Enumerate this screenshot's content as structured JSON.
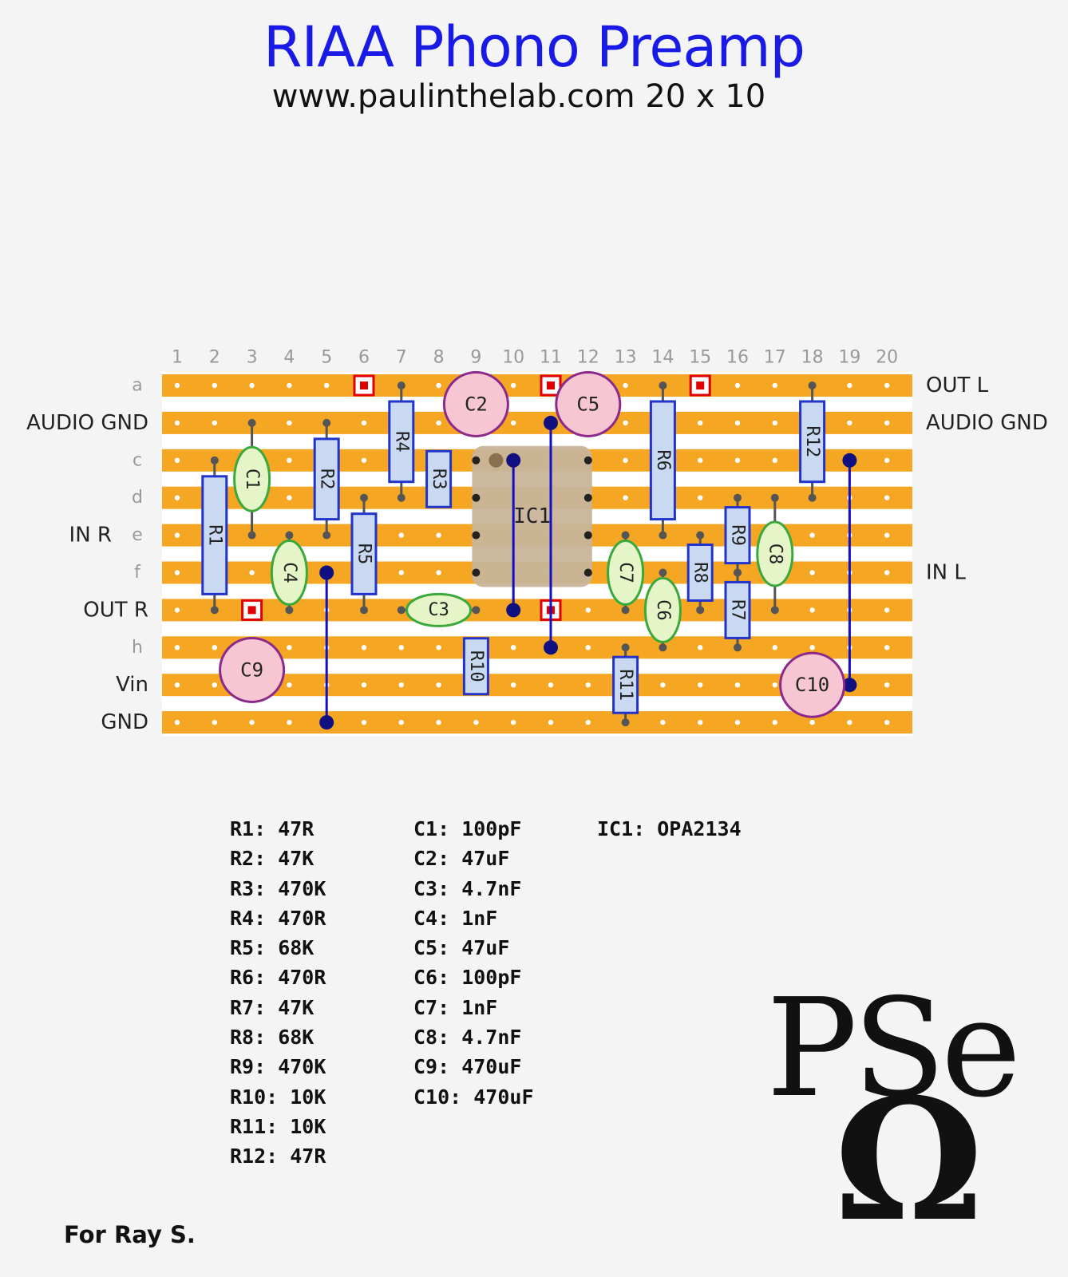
{
  "title": "RIAA Phono Preamp",
  "subtitle": "www.paulinthelab.com 20 x 10",
  "board": {
    "columns": [
      "1",
      "2",
      "3",
      "4",
      "5",
      "6",
      "7",
      "8",
      "9",
      "10",
      "11",
      "12",
      "13",
      "14",
      "15",
      "16",
      "17",
      "18",
      "19",
      "20"
    ],
    "rows": [
      "a",
      "AUDIO GND",
      "c",
      "d",
      "e",
      "f",
      "OUT R",
      "h",
      "Vin",
      "GND"
    ],
    "row_labels_left": [
      {
        "row": 0,
        "text": "a"
      },
      {
        "row": 1,
        "text": "AUDIO GND"
      },
      {
        "row": 2,
        "text": "c"
      },
      {
        "row": 3,
        "text": "d"
      },
      {
        "row": 4,
        "text": "IN R"
      },
      {
        "row": 4,
        "text": "e"
      },
      {
        "row": 5,
        "text": "f"
      },
      {
        "row": 6,
        "text": "OUT R"
      },
      {
        "row": 7,
        "text": "h"
      },
      {
        "row": 8,
        "text": "Vin"
      },
      {
        "row": 9,
        "text": "GND"
      }
    ],
    "row_labels_right": [
      {
        "row": 0,
        "text": "OUT L"
      },
      {
        "row": 1,
        "text": "AUDIO GND"
      },
      {
        "row": 5,
        "text": "IN L"
      }
    ],
    "strip_color": "#f5a623",
    "resistor_color": "#c9d9f2",
    "resistor_border": "#2233cc",
    "film_cap_color": "#e5f5c8",
    "film_cap_border": "#3aa83a",
    "electrolytic_color": "#f6c6d2",
    "electrolytic_border": "#8b2a8b",
    "wire_color": "#1010c8",
    "cut_color": "#e00000",
    "ic_color": "#c8b49a",
    "cuts": [
      [
        6,
        0
      ],
      [
        11,
        0
      ],
      [
        15,
        0
      ],
      [
        3,
        6
      ],
      [
        11,
        6
      ]
    ],
    "resistors": [
      {
        "label": "R1",
        "col": 2,
        "from": 2,
        "to": 6
      },
      {
        "label": "R2",
        "col": 5,
        "from": 1,
        "to": 4
      },
      {
        "label": "R3",
        "col": 8,
        "from": 2,
        "to": 3
      },
      {
        "label": "R4",
        "col": 7,
        "from": 0,
        "to": 3
      },
      {
        "label": "R5",
        "col": 6,
        "from": 3,
        "to": 6
      },
      {
        "label": "R6",
        "col": 14,
        "from": 0,
        "to": 4
      },
      {
        "label": "R7",
        "col": 16,
        "from": 5,
        "to": 7
      },
      {
        "label": "R8",
        "col": 15,
        "from": 4,
        "to": 6
      },
      {
        "label": "R9",
        "col": 16,
        "from": 3,
        "to": 5
      },
      {
        "label": "R10",
        "col": 9,
        "from": 7,
        "to": 8
      },
      {
        "label": "R11",
        "col": 13,
        "from": 7,
        "to": 9
      },
      {
        "label": "R12",
        "col": 18,
        "from": 0,
        "to": 3
      }
    ],
    "film_caps": [
      {
        "label": "C1",
        "col": 3,
        "from": 1,
        "to": 4,
        "orient": "v"
      },
      {
        "label": "C4",
        "col": 4,
        "from": 4,
        "to": 6,
        "orient": "v"
      },
      {
        "label": "C3",
        "row": 6,
        "from": 7,
        "to": 9,
        "orient": "h"
      },
      {
        "label": "C7",
        "col": 13,
        "from": 4,
        "to": 6,
        "orient": "v"
      },
      {
        "label": "C6",
        "col": 14,
        "from": 5,
        "to": 7,
        "orient": "v"
      },
      {
        "label": "C8",
        "col": 17,
        "from": 3,
        "to": 6,
        "orient": "v"
      }
    ],
    "electrolytics": [
      {
        "label": "C2",
        "col": 9,
        "row": 0.5
      },
      {
        "label": "C5",
        "col": 12,
        "row": 0.5
      },
      {
        "label": "C9",
        "col": 3,
        "row": 7.6
      },
      {
        "label": "C10",
        "col": 18,
        "row": 8
      }
    ],
    "wires": [
      {
        "col": 5,
        "from": 5,
        "to": 9
      },
      {
        "col": 11,
        "from": 1,
        "to": 7
      },
      {
        "col": 10,
        "from": 2,
        "to": 6
      },
      {
        "col": 19,
        "from": 2,
        "to": 8
      }
    ],
    "ic": {
      "label": "IC1",
      "col_from": 9,
      "col_to": 12,
      "row_from": 2,
      "row_to": 5
    }
  },
  "parts_col1": [
    "R1: 47R",
    "R2: 47K",
    "R3: 470K",
    "R4: 470R",
    "R5: 68K",
    "R6: 470R",
    "R7: 47K",
    "R8: 68K",
    "R9: 470K",
    "R10: 10K",
    "R11: 10K",
    "R12: 47R"
  ],
  "parts_col2": [
    "C1: 100pF",
    "C2: 47uF",
    "C3: 4.7nF",
    "C4: 1nF",
    "C5: 47uF",
    "C6: 100pF",
    "C7: 1nF",
    "C8: 4.7nF",
    "C9: 470uF",
    "C10: 470uF"
  ],
  "parts_col3": [
    "IC1: OPA2134"
  ],
  "footer": "For Ray S.",
  "logo": {
    "text": "PSe",
    "symbol": "Ω"
  }
}
